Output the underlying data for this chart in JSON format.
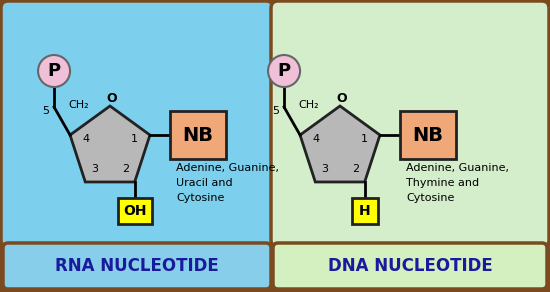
{
  "outer_bg": "#7B4A1E",
  "rna_bg_top": "#6EC6E6",
  "rna_bg": "#7DCFEE",
  "dna_bg": "#D4EDCA",
  "label_rna_bg": "#87CEEB",
  "label_dna_bg": "#D4F0C0",
  "rna_label": "RNA NUCLEOTIDE",
  "dna_label": "DNA NUCLEOTIDE",
  "p_circle_color": "#F0C0D8",
  "p_circle_edge": "#666666",
  "pentagon_color": "#B8B8B8",
  "pentagon_edge": "#222222",
  "nb_box_color": "#F0A878",
  "nb_box_edge": "#222222",
  "oh_box_color": "#FFFF00",
  "oh_box_edge": "#222222",
  "rna_bases": "Adenine, Guanine,\nUracil and\nCytosine",
  "dna_bases": "Adenine, Guanine,\nThymine and\nCytosine",
  "label_text_color": "#1a1a9c",
  "panel_edge": "#7B4A1E"
}
